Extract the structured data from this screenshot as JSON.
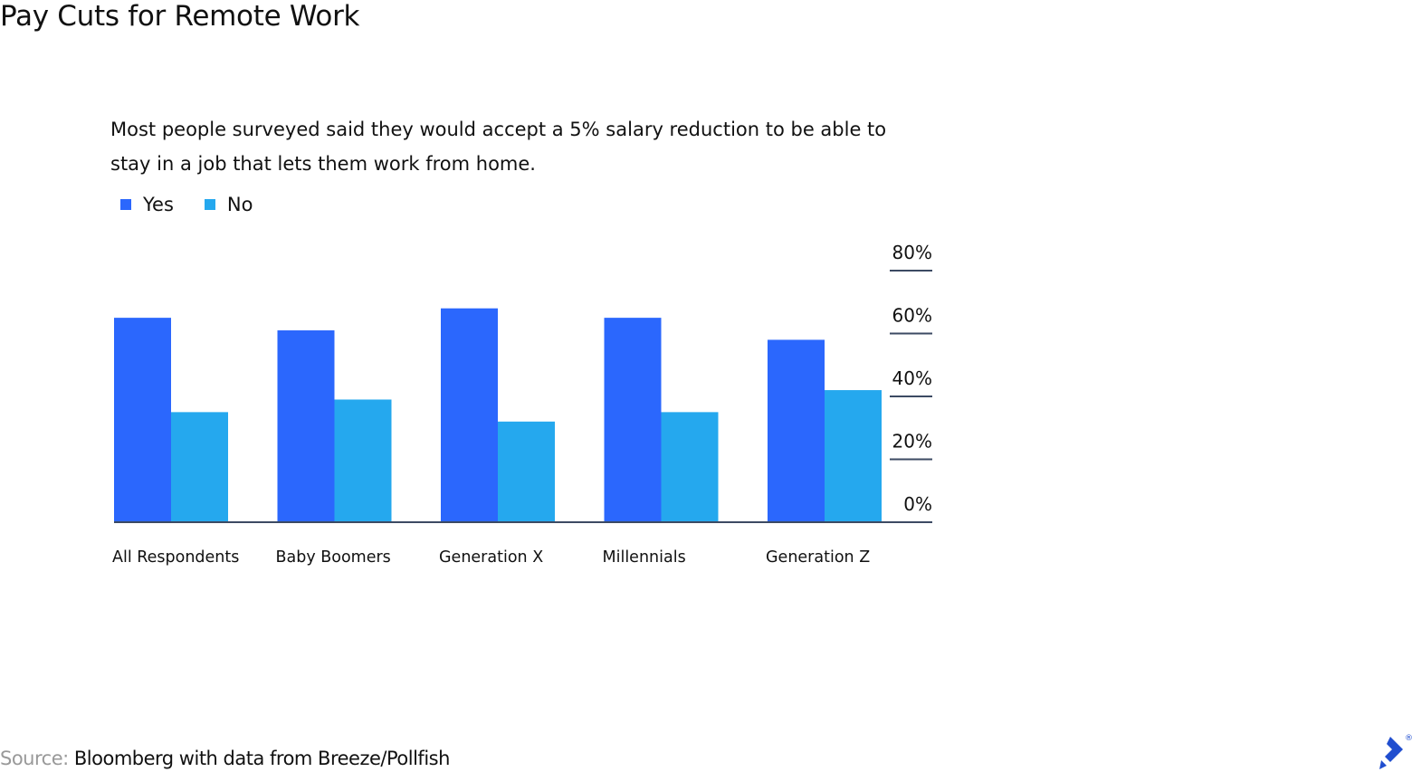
{
  "chart_data": {
    "type": "bar",
    "title": "Pay Cuts for Remote Work",
    "subtitle": "Most people surveyed said they would accept a 5% salary reduction to be able to stay in a job that lets them work from home.",
    "categories": [
      "All Respondents",
      "Baby Boomers",
      "Generation X",
      "Millennials",
      "Generation Z"
    ],
    "series": [
      {
        "name": "Yes",
        "color": "#2b67fd",
        "values": [
          65,
          61,
          68,
          65,
          58
        ]
      },
      {
        "name": "No",
        "color": "#25a8ee",
        "values": [
          35,
          39,
          32,
          35,
          42
        ]
      }
    ],
    "ylim": [
      0,
      80
    ],
    "yticks": [
      {
        "value": 0,
        "label": "0%"
      },
      {
        "value": 20,
        "label": "20%"
      },
      {
        "value": 40,
        "label": "40%"
      },
      {
        "value": 60,
        "label": "60%"
      },
      {
        "value": 80,
        "label": "80%"
      }
    ],
    "grid": true,
    "source_label": "Source:",
    "source": "Bloomberg with data from Breeze/Pollfish"
  }
}
